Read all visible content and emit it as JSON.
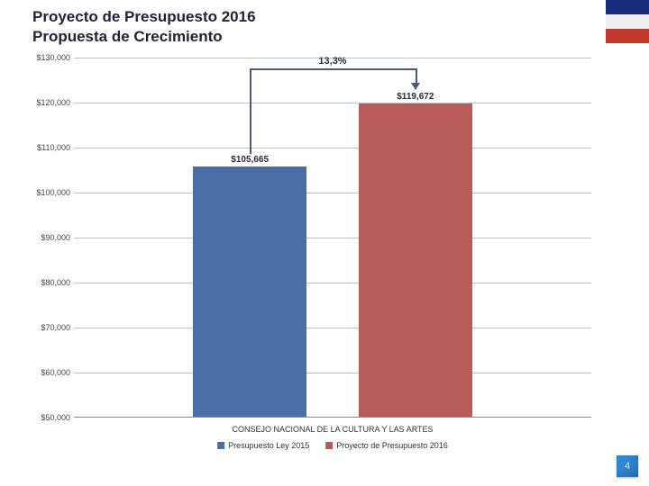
{
  "title_line1": "Proyecto de Presupuesto 2016",
  "title_line2": "Propuesta de Crecimiento",
  "slide_number": "4",
  "flag_colors": {
    "blue": "#1a2c7c",
    "white": "#eeeeee",
    "red": "#c0392b"
  },
  "chart": {
    "type": "bar",
    "ymin": 50000,
    "ymax": 130000,
    "ytick_step": 10000,
    "ytick_labels": [
      "$50,000",
      "$60,000",
      "$70,000",
      "$80,000",
      "$90,000",
      "$100,000",
      "$110,000",
      "$120,000",
      "$130,000"
    ],
    "grid_color": "#bfbfbf",
    "axis_color": "#888888",
    "background_color": "#ffffff",
    "bar_width_ratio": 0.22,
    "gap_ratio": 0.1,
    "series": [
      {
        "name": "Presupuesto Ley 2015",
        "value": 105665,
        "label": "$105,665",
        "color": "#4a6fa5"
      },
      {
        "name": "Proyecto de Presupuesto 2016",
        "value": 119672,
        "label": "$119,672",
        "color": "#b85b5b"
      }
    ],
    "growth_label": "13,3%",
    "x_category_label": "CONSEJO NACIONAL DE LA CULTURA Y LAS ARTES",
    "font": {
      "tick_size_pt": 9,
      "datalabel_size_pt": 10,
      "growth_size_pt": 11,
      "title_size_pt": 17,
      "legend_size_pt": 9
    }
  },
  "legend": {
    "items": [
      {
        "label": "Presupuesto Ley 2015",
        "color": "#4a6fa5"
      },
      {
        "label": "Proyecto de Presupuesto 2016",
        "color": "#b85b5b"
      }
    ]
  }
}
